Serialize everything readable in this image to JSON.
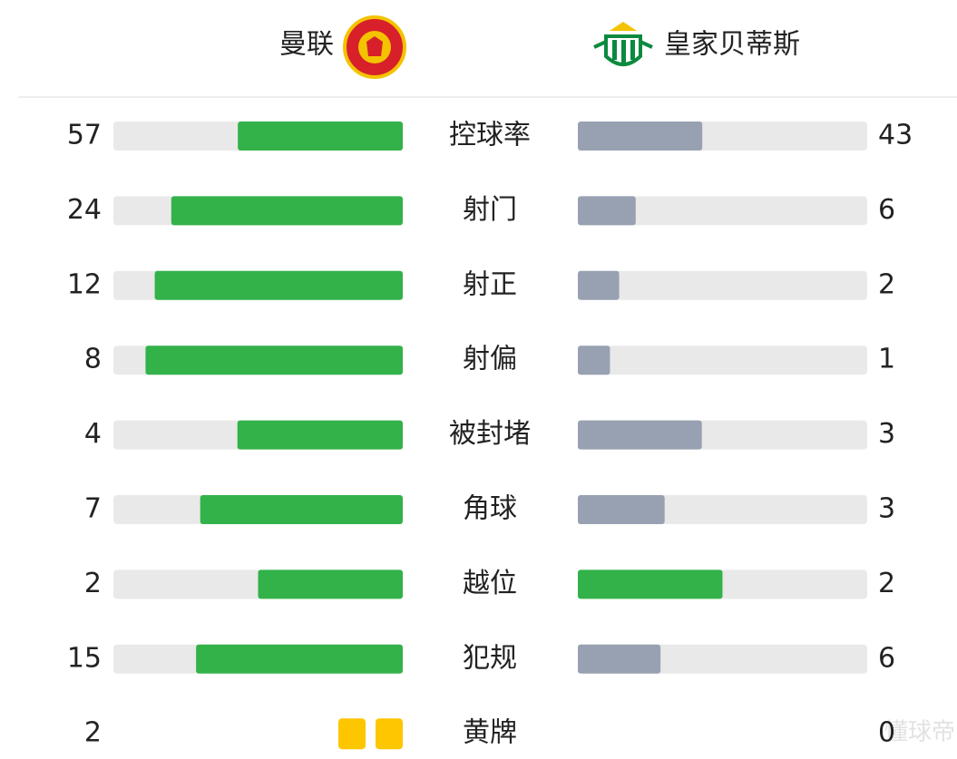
{
  "header": {
    "home": "曼联",
    "away": "皇家贝蒂斯"
  },
  "stats": [
    {
      "label": "控球率",
      "home": 57,
      "away": 43
    },
    {
      "label": "射门",
      "home": 24,
      "away": 6
    },
    {
      "label": "射正",
      "home": 12,
      "away": 2
    },
    {
      "label": "射偏",
      "home": 8,
      "away": 1
    },
    {
      "label": "被封堵",
      "home": 4,
      "away": 3
    },
    {
      "label": "角球",
      "home": 7,
      "away": 3
    },
    {
      "label": "越位",
      "home": 2,
      "away": 2
    },
    {
      "label": "犯规",
      "home": 15,
      "away": 6
    },
    {
      "label": "黄牌",
      "home": 2,
      "away": 0,
      "style": "cards"
    }
  ],
  "colors": {
    "lead": "#33b24a",
    "trail": "#98a1b2",
    "track": "#e9e9e9",
    "card": "#fdc600"
  },
  "watermark": "懂球帝"
}
